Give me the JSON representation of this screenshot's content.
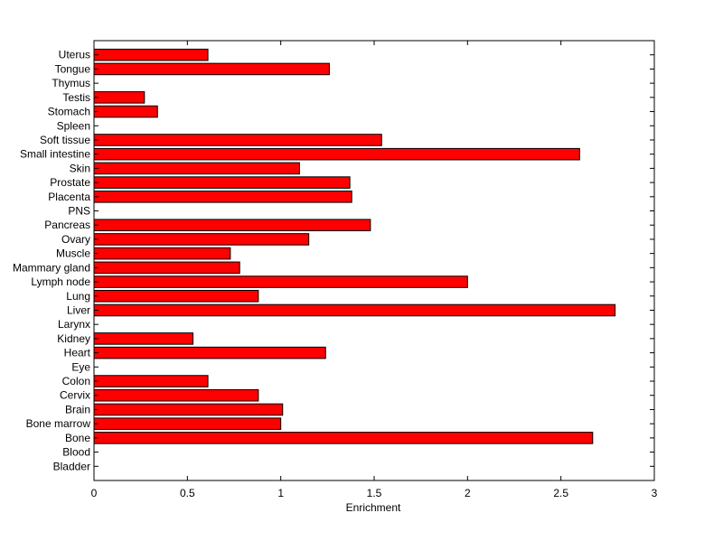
{
  "chart_data": {
    "type": "bar",
    "orientation": "horizontal",
    "title": "",
    "xlabel": "Enrichment",
    "ylabel": "",
    "xlim": [
      0,
      3
    ],
    "xticks": [
      0,
      0.5,
      1,
      1.5,
      2,
      2.5,
      3
    ],
    "xtick_labels": [
      "0",
      "0.5",
      "1",
      "1.5",
      "2",
      "2.5",
      "3"
    ],
    "grid": false,
    "legend": "none",
    "bar_color": "#ff0000",
    "categories": [
      "Bladder",
      "Blood",
      "Bone",
      "Bone marrow",
      "Brain",
      "Cervix",
      "Colon",
      "Eye",
      "Heart",
      "Kidney",
      "Larynx",
      "Liver",
      "Lung",
      "Lymph node",
      "Mammary gland",
      "Muscle",
      "Ovary",
      "Pancreas",
      "PNS",
      "Placenta",
      "Prostate",
      "Skin",
      "Small intestine",
      "Soft tissue",
      "Spleen",
      "Stomach",
      "Testis",
      "Thymus",
      "Tongue",
      "Uterus"
    ],
    "values": [
      0,
      0,
      2.67,
      1.0,
      1.01,
      0.88,
      0.61,
      0,
      1.24,
      0.53,
      0,
      2.79,
      0.88,
      2.0,
      0.78,
      0.73,
      1.15,
      1.48,
      0,
      1.38,
      1.37,
      1.1,
      2.6,
      1.54,
      0,
      0.34,
      0.27,
      0,
      1.26,
      0.61
    ]
  }
}
